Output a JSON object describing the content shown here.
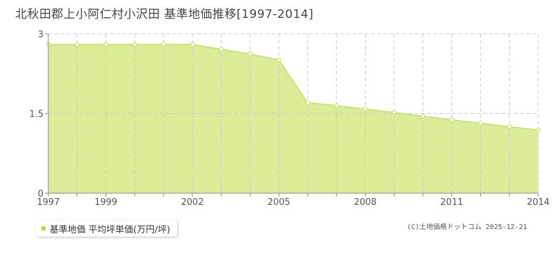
{
  "title": "北秋田郡上小阿仁村小沢田 基準地価推移[1997-2014]",
  "colors": {
    "fill": "#dbeb97",
    "line": "#c3e070",
    "point_fill": "#ffffff",
    "grid": "#c8c8c8",
    "axis": "#888888",
    "legend_swatch": "#b5d94a"
  },
  "legend": {
    "label": "基準地価 平均坪単価(万円/坪)"
  },
  "credit": "(C)土地価格ドットコム 2025-12-21",
  "chart_data": {
    "type": "area",
    "xlim": [
      1997,
      2014
    ],
    "ylim": [
      0,
      3
    ],
    "x_ticks": [
      1997,
      1999,
      2002,
      2005,
      2008,
      2011,
      2014
    ],
    "y_ticks": [
      {
        "value": 0,
        "label": "0"
      },
      {
        "value": 1.5,
        "label": "1.5"
      },
      {
        "value": 3,
        "label": "3"
      }
    ],
    "grid": true,
    "series": [
      {
        "x": [
          1997,
          1998,
          1999,
          2000,
          2001,
          2002,
          2003,
          2004,
          2005,
          2006,
          2007,
          2008,
          2009,
          2010,
          2011,
          2012,
          2013,
          2014
        ],
        "values": [
          2.8,
          2.8,
          2.8,
          2.8,
          2.8,
          2.8,
          2.71,
          2.62,
          2.51,
          1.7,
          1.65,
          1.58,
          1.52,
          1.45,
          1.38,
          1.32,
          1.25,
          1.19
        ]
      }
    ]
  }
}
